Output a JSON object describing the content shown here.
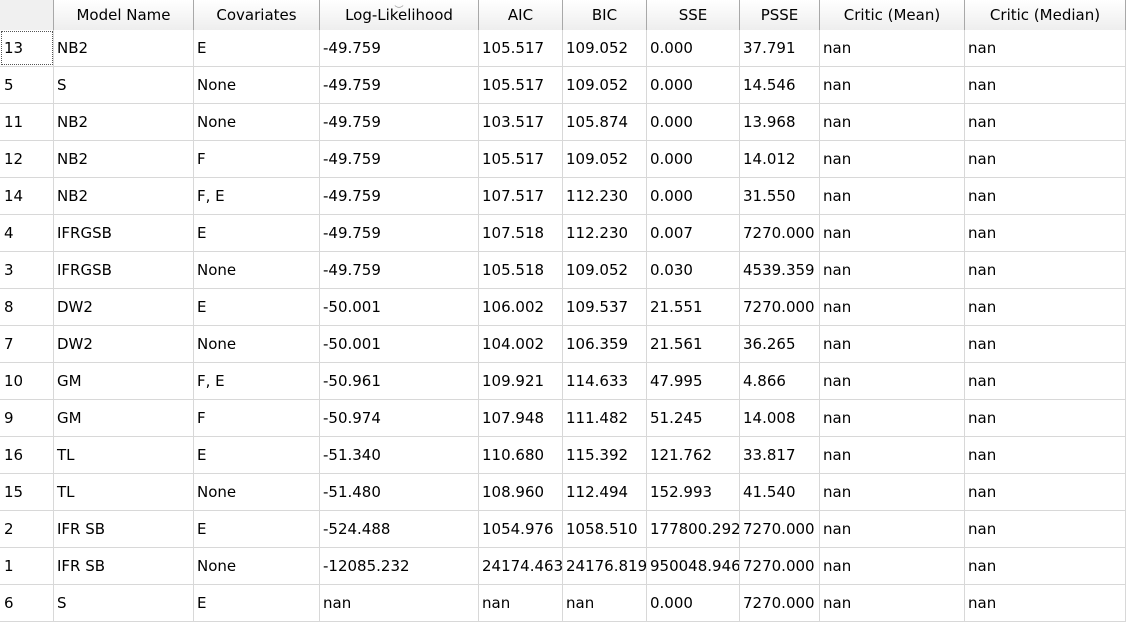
{
  "table": {
    "columns": [
      "",
      "Model Name",
      "Covariates",
      "Log-Likelihood",
      "AIC",
      "BIC",
      "SSE",
      "PSSE",
      "Critic (Mean)",
      "Critic (Median)"
    ],
    "rows": [
      [
        "13",
        "NB2",
        "E",
        "-49.759",
        "105.517",
        "109.052",
        "0.000",
        "37.791",
        "nan",
        "nan"
      ],
      [
        "5",
        "S",
        "None",
        "-49.759",
        "105.517",
        "109.052",
        "0.000",
        "14.546",
        "nan",
        "nan"
      ],
      [
        "11",
        "NB2",
        "None",
        "-49.759",
        "103.517",
        "105.874",
        "0.000",
        "13.968",
        "nan",
        "nan"
      ],
      [
        "12",
        "NB2",
        "F",
        "-49.759",
        "105.517",
        "109.052",
        "0.000",
        "14.012",
        "nan",
        "nan"
      ],
      [
        "14",
        "NB2",
        "F, E",
        "-49.759",
        "107.517",
        "112.230",
        "0.000",
        "31.550",
        "nan",
        "nan"
      ],
      [
        "4",
        "IFRGSB",
        "E",
        "-49.759",
        "107.518",
        "112.230",
        "0.007",
        "7270.000",
        "nan",
        "nan"
      ],
      [
        "3",
        "IFRGSB",
        "None",
        "-49.759",
        "105.518",
        "109.052",
        "0.030",
        "4539.359",
        "nan",
        "nan"
      ],
      [
        "8",
        "DW2",
        "E",
        "-50.001",
        "106.002",
        "109.537",
        "21.551",
        "7270.000",
        "nan",
        "nan"
      ],
      [
        "7",
        "DW2",
        "None",
        "-50.001",
        "104.002",
        "106.359",
        "21.561",
        "36.265",
        "nan",
        "nan"
      ],
      [
        "10",
        "GM",
        "F, E",
        "-50.961",
        "109.921",
        "114.633",
        "47.995",
        "4.866",
        "nan",
        "nan"
      ],
      [
        "9",
        "GM",
        "F",
        "-50.974",
        "107.948",
        "111.482",
        "51.245",
        "14.008",
        "nan",
        "nan"
      ],
      [
        "16",
        "TL",
        "E",
        "-51.340",
        "110.680",
        "115.392",
        "121.762",
        "33.817",
        "nan",
        "nan"
      ],
      [
        "15",
        "TL",
        "None",
        "-51.480",
        "108.960",
        "112.494",
        "152.993",
        "41.540",
        "nan",
        "nan"
      ],
      [
        "2",
        "IFR SB",
        "E",
        "-524.488",
        "1054.976",
        "1058.510",
        "177800.292",
        "7270.000",
        "nan",
        "nan"
      ],
      [
        "1",
        "IFR SB",
        "None",
        "-12085.232",
        "24174.463",
        "24176.819",
        "950048.946",
        "7270.000",
        "nan",
        "nan"
      ],
      [
        "6",
        "S",
        "E",
        "nan",
        "nan",
        "nan",
        "0.000",
        "7270.000",
        "nan",
        "nan"
      ]
    ]
  }
}
